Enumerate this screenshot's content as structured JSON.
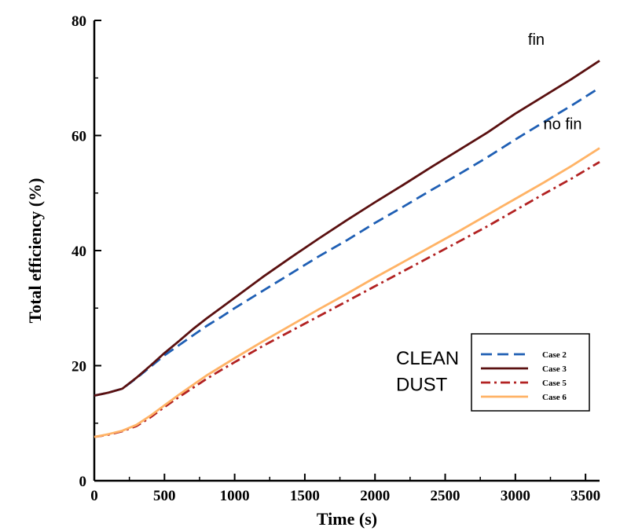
{
  "chart_data": {
    "type": "line",
    "xlabel": "Time (s)",
    "ylabel": "Total efficiency (%)",
    "xlim": [
      0,
      3600
    ],
    "ylim": [
      0,
      80
    ],
    "xticks": [
      0,
      500,
      1000,
      1500,
      2000,
      2500,
      3000,
      3500
    ],
    "yticks": [
      0,
      20,
      40,
      60,
      80
    ],
    "grid": false,
    "legend_position": "lower-right",
    "series": [
      {
        "name": "Case 2",
        "color": "#1f5fb4",
        "dash": "dashed",
        "x": [
          0,
          100,
          200,
          300,
          400,
          500,
          600,
          700,
          800,
          900,
          1000,
          1200,
          1400,
          1600,
          1800,
          2000,
          2200,
          2400,
          2600,
          2800,
          3000,
          3200,
          3400,
          3600
        ],
        "y": [
          14.8,
          15.3,
          16.0,
          17.8,
          19.8,
          21.8,
          23.5,
          25.2,
          26.9,
          28.4,
          30.0,
          33.0,
          36.0,
          39.0,
          41.8,
          44.8,
          47.6,
          50.5,
          53.3,
          56.2,
          59.3,
          62.3,
          65.2,
          68.3
        ]
      },
      {
        "name": "Case 3",
        "color": "#5a1010",
        "dash": "solid",
        "x": [
          0,
          100,
          200,
          300,
          400,
          500,
          600,
          700,
          800,
          900,
          1000,
          1200,
          1400,
          1600,
          1800,
          2000,
          2200,
          2400,
          2600,
          2800,
          3000,
          3200,
          3400,
          3600
        ],
        "y": [
          14.8,
          15.3,
          16.0,
          17.9,
          20.0,
          22.2,
          24.2,
          26.3,
          28.2,
          30.0,
          31.8,
          35.4,
          38.8,
          42.1,
          45.3,
          48.4,
          51.4,
          54.5,
          57.5,
          60.5,
          63.8,
          66.8,
          69.8,
          73.0
        ]
      },
      {
        "name": "Case 5",
        "color": "#b22222",
        "dash": "dashdot",
        "x": [
          0,
          100,
          200,
          300,
          400,
          500,
          600,
          700,
          800,
          900,
          1000,
          1200,
          1400,
          1600,
          1800,
          2000,
          2200,
          2400,
          2600,
          2800,
          3000,
          3200,
          3400,
          3600
        ],
        "y": [
          7.6,
          8.0,
          8.6,
          9.5,
          11.0,
          12.8,
          14.5,
          16.1,
          17.7,
          19.2,
          20.6,
          23.4,
          26.0,
          28.6,
          31.2,
          33.8,
          36.4,
          39.0,
          41.6,
          44.2,
          47.0,
          49.8,
          52.5,
          55.4
        ]
      },
      {
        "name": "Case 6",
        "color": "#ffb366",
        "dash": "solid",
        "x": [
          0,
          100,
          200,
          300,
          400,
          500,
          600,
          700,
          800,
          900,
          1000,
          1200,
          1400,
          1600,
          1800,
          2000,
          2200,
          2400,
          2600,
          2800,
          3000,
          3200,
          3400,
          3600
        ],
        "y": [
          7.6,
          8.1,
          8.7,
          9.7,
          11.3,
          13.1,
          14.9,
          16.6,
          18.3,
          19.8,
          21.3,
          24.2,
          27.0,
          29.8,
          32.5,
          35.3,
          38.0,
          40.7,
          43.4,
          46.2,
          49.0,
          51.8,
          54.7,
          57.8
        ]
      }
    ],
    "annotations": [
      {
        "text": "fin",
        "x": 3090,
        "y": 75.8
      },
      {
        "text": "no fin",
        "x": 3200,
        "y": 61.1
      },
      {
        "text": "CLEAN",
        "x": 2150,
        "y": 20.2
      },
      {
        "text": "DUST",
        "x": 2150,
        "y": 15.6
      }
    ]
  }
}
